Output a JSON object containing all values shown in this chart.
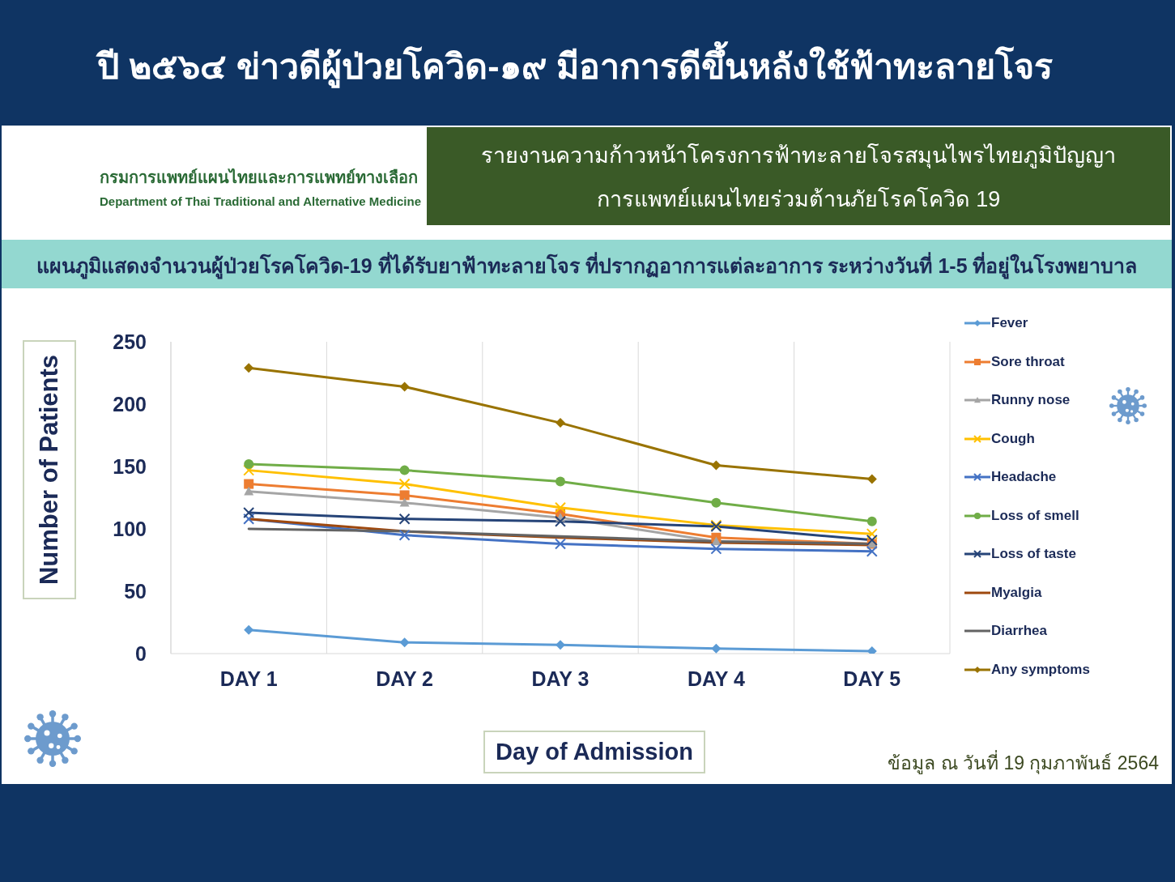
{
  "chart_data": {
    "type": "line",
    "title": "ปี ๒๕๖๔ ข่าวดีผู้ป่วยโควิด-๑๙ มีอาการดีขึ้นหลังใช้ฟ้าทะลายโจร",
    "subtitle": "แผนภูมิแสดงจำนวนผู้ป่วยโรคโควิด-19 ที่ได้รับยาฟ้าทะลายโจร ที่ปรากฏอาการแต่ละอาการ ระหว่างวันที่ 1-5 ที่อยู่ในโรงพยาบาล",
    "xlabel": "Day of Admission",
    "ylabel": "Number of Patients",
    "annotations": [
      "กรมการแพทย์แผนไทยและการแพทย์ทางเลือก",
      "Department of Thai Traditional and Alternative Medicine",
      "รายงานความก้าวหน้าโครงการฟ้าทะลายโจรสมุนไพรไทยภูมิปัญญา",
      "การแพทย์แผนไทยร่วมต้านภัยโรคโควิด 19",
      "ข้อมูล ณ วันที่ 19 กุมภาพันธ์ 2564"
    ],
    "categories": [
      "DAY 1",
      "DAY 2",
      "DAY 3",
      "DAY 4",
      "DAY 5"
    ],
    "series": [
      {
        "name": "Fever",
        "color": "#5b9bd5",
        "marker": "diamond",
        "values": [
          19,
          9,
          7,
          4,
          2
        ]
      },
      {
        "name": "Sore throat",
        "color": "#ed7d31",
        "marker": "square",
        "values": [
          136,
          127,
          112,
          93,
          88
        ]
      },
      {
        "name": "Runny nose",
        "color": "#a5a5a5",
        "marker": "triangle",
        "values": [
          130,
          121,
          109,
          90,
          88
        ]
      },
      {
        "name": "Cough",
        "color": "#ffc000",
        "marker": "cross",
        "values": [
          147,
          136,
          117,
          103,
          96
        ]
      },
      {
        "name": "Headache",
        "color": "#4472c4",
        "marker": "cross",
        "values": [
          108,
          95,
          88,
          84,
          82
        ]
      },
      {
        "name": "Loss of smell",
        "color": "#70ad47",
        "marker": "circle",
        "values": [
          152,
          147,
          138,
          121,
          106
        ]
      },
      {
        "name": "Loss of taste",
        "color": "#264478",
        "marker": "cross",
        "values": [
          113,
          108,
          106,
          102,
          91
        ]
      },
      {
        "name": "Myalgia",
        "color": "#9e480e",
        "marker": "none",
        "values": [
          108,
          98,
          93,
          89,
          87
        ]
      },
      {
        "name": "Diarrhea",
        "color": "#636363",
        "marker": "none",
        "values": [
          100,
          98,
          94,
          90,
          88
        ]
      },
      {
        "name": "Any symptoms",
        "color": "#997300",
        "marker": "diamond",
        "values": [
          229,
          214,
          185,
          151,
          140
        ]
      }
    ],
    "ylim": [
      0,
      250
    ],
    "yticks": [
      0,
      50,
      100,
      150,
      200,
      250
    ],
    "grid": "x",
    "legend": "right",
    "line_style": "solid"
  }
}
